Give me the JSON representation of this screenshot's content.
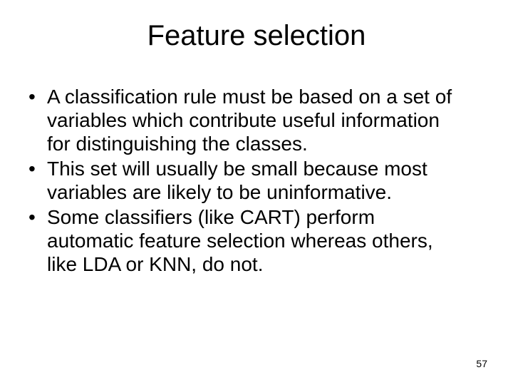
{
  "slide": {
    "title": "Feature selection",
    "bullets": [
      "A classification rule must be based on a set of variables which contribute useful information for distinguishing the classes.",
      "This set will usually be small because most variables are likely to be uninformative.",
      "Some classifiers (like CART) perform automatic feature selection whereas others, like LDA or KNN, do not."
    ],
    "page_number": "57"
  },
  "style": {
    "background_color": "#ffffff",
    "text_color": "#000000",
    "title_fontsize": 40,
    "body_fontsize": 28,
    "pagenum_fontsize": 14
  }
}
